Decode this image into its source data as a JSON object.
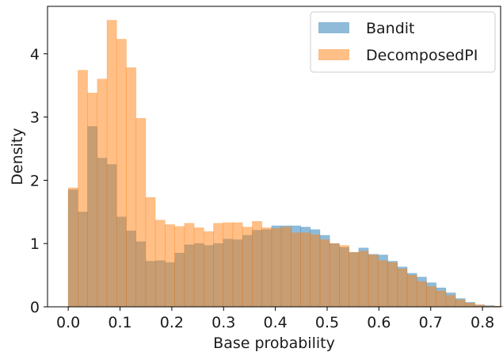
{
  "chart_data": {
    "type": "histogram",
    "xlabel": "Base probability",
    "ylabel": "Density",
    "xlim": [
      -0.04,
      0.835
    ],
    "ylim": [
      0,
      4.75
    ],
    "xticks": [
      0.0,
      0.1,
      0.2,
      0.3,
      0.4,
      0.5,
      0.6,
      0.7,
      0.8
    ],
    "xtick_labels": [
      "0.0",
      "0.1",
      "0.2",
      "0.3",
      "0.4",
      "0.5",
      "0.6",
      "0.7",
      "0.8"
    ],
    "yticks": [
      0,
      1,
      2,
      3,
      4
    ],
    "ytick_labels": [
      "0",
      "1",
      "2",
      "3",
      "4"
    ],
    "grid": false,
    "legend_position": "top-right",
    "bin_width": 0.0187,
    "series": [
      {
        "name": "Bandit",
        "color": "#1f77b4",
        "alpha": 0.5,
        "bin_start": 0.0,
        "values": [
          1.85,
          1.5,
          2.85,
          2.35,
          2.25,
          1.42,
          1.2,
          1.03,
          0.72,
          0.73,
          0.7,
          0.85,
          0.98,
          1.0,
          0.97,
          1.0,
          1.07,
          1.06,
          1.13,
          1.21,
          1.22,
          1.28,
          1.28,
          1.28,
          1.26,
          1.22,
          1.13,
          1.0,
          0.94,
          0.86,
          0.93,
          0.83,
          0.82,
          0.72,
          0.63,
          0.53,
          0.47,
          0.38,
          0.3,
          0.22,
          0.13,
          0.07,
          0.03,
          0.02,
          0.01
        ]
      },
      {
        "name": "DecomposedPI",
        "color": "#ff7f0e",
        "alpha": 0.5,
        "bin_start": 0.0,
        "values": [
          1.88,
          3.74,
          3.38,
          3.6,
          4.53,
          4.23,
          3.78,
          2.98,
          1.73,
          1.37,
          1.3,
          1.27,
          1.32,
          1.25,
          1.19,
          1.32,
          1.33,
          1.33,
          1.26,
          1.35,
          1.25,
          1.24,
          1.26,
          1.17,
          1.17,
          1.14,
          1.06,
          1.0,
          0.97,
          0.86,
          0.88,
          0.82,
          0.73,
          0.7,
          0.6,
          0.5,
          0.4,
          0.32,
          0.25,
          0.18,
          0.11,
          0.06,
          0.03,
          0.01,
          0.01
        ]
      }
    ]
  }
}
